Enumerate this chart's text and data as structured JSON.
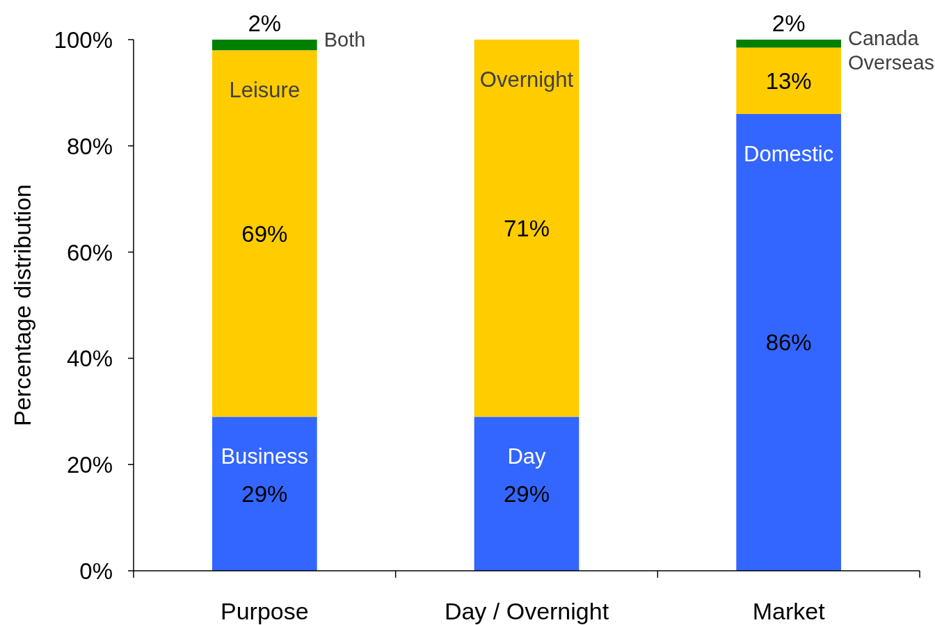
{
  "chart_data": {
    "type": "bar",
    "stacked": true,
    "ylabel": "Percentage distribution",
    "categories": [
      "Purpose",
      "Day / Overnight",
      "Market"
    ],
    "series": [
      {
        "color": "#3366ff",
        "values": [
          29,
          29,
          86
        ],
        "value_labels": [
          "29%",
          "29%",
          "86%"
        ]
      },
      {
        "color": "#ffcc00",
        "values": [
          69,
          71,
          12.5
        ],
        "value_labels": [
          "69%",
          "71%",
          "13%"
        ]
      },
      {
        "color": "#008000",
        "values": [
          2,
          null,
          1.5
        ],
        "value_labels": [
          "2%",
          null,
          "2%"
        ]
      }
    ],
    "ylim": [
      0,
      100
    ],
    "yticks": [
      {
        "value": 0,
        "label": "0%"
      },
      {
        "value": 20,
        "label": "20%"
      },
      {
        "value": 40,
        "label": "40%"
      },
      {
        "value": 60,
        "label": "60%"
      },
      {
        "value": 80,
        "label": "80%"
      },
      {
        "value": 100,
        "label": "100%"
      }
    ],
    "annotations": [
      {
        "text": "Business",
        "x": "Purpose",
        "y": 29
      },
      {
        "text": "Leisure",
        "x": "Purpose",
        "y": 98
      },
      {
        "text": "Both",
        "x": "Purpose",
        "y": 100
      },
      {
        "text": "Day",
        "x": "Day / Overnight",
        "y": 29
      },
      {
        "text": "Overnight",
        "x": "Day / Overnight",
        "y": 100
      },
      {
        "text": "Domestic",
        "x": "Market",
        "y": 86
      },
      {
        "text": "Overseas",
        "x": "Market",
        "y": 98.5
      },
      {
        "text": "Canada",
        "x": "Market",
        "y": 100
      }
    ]
  }
}
